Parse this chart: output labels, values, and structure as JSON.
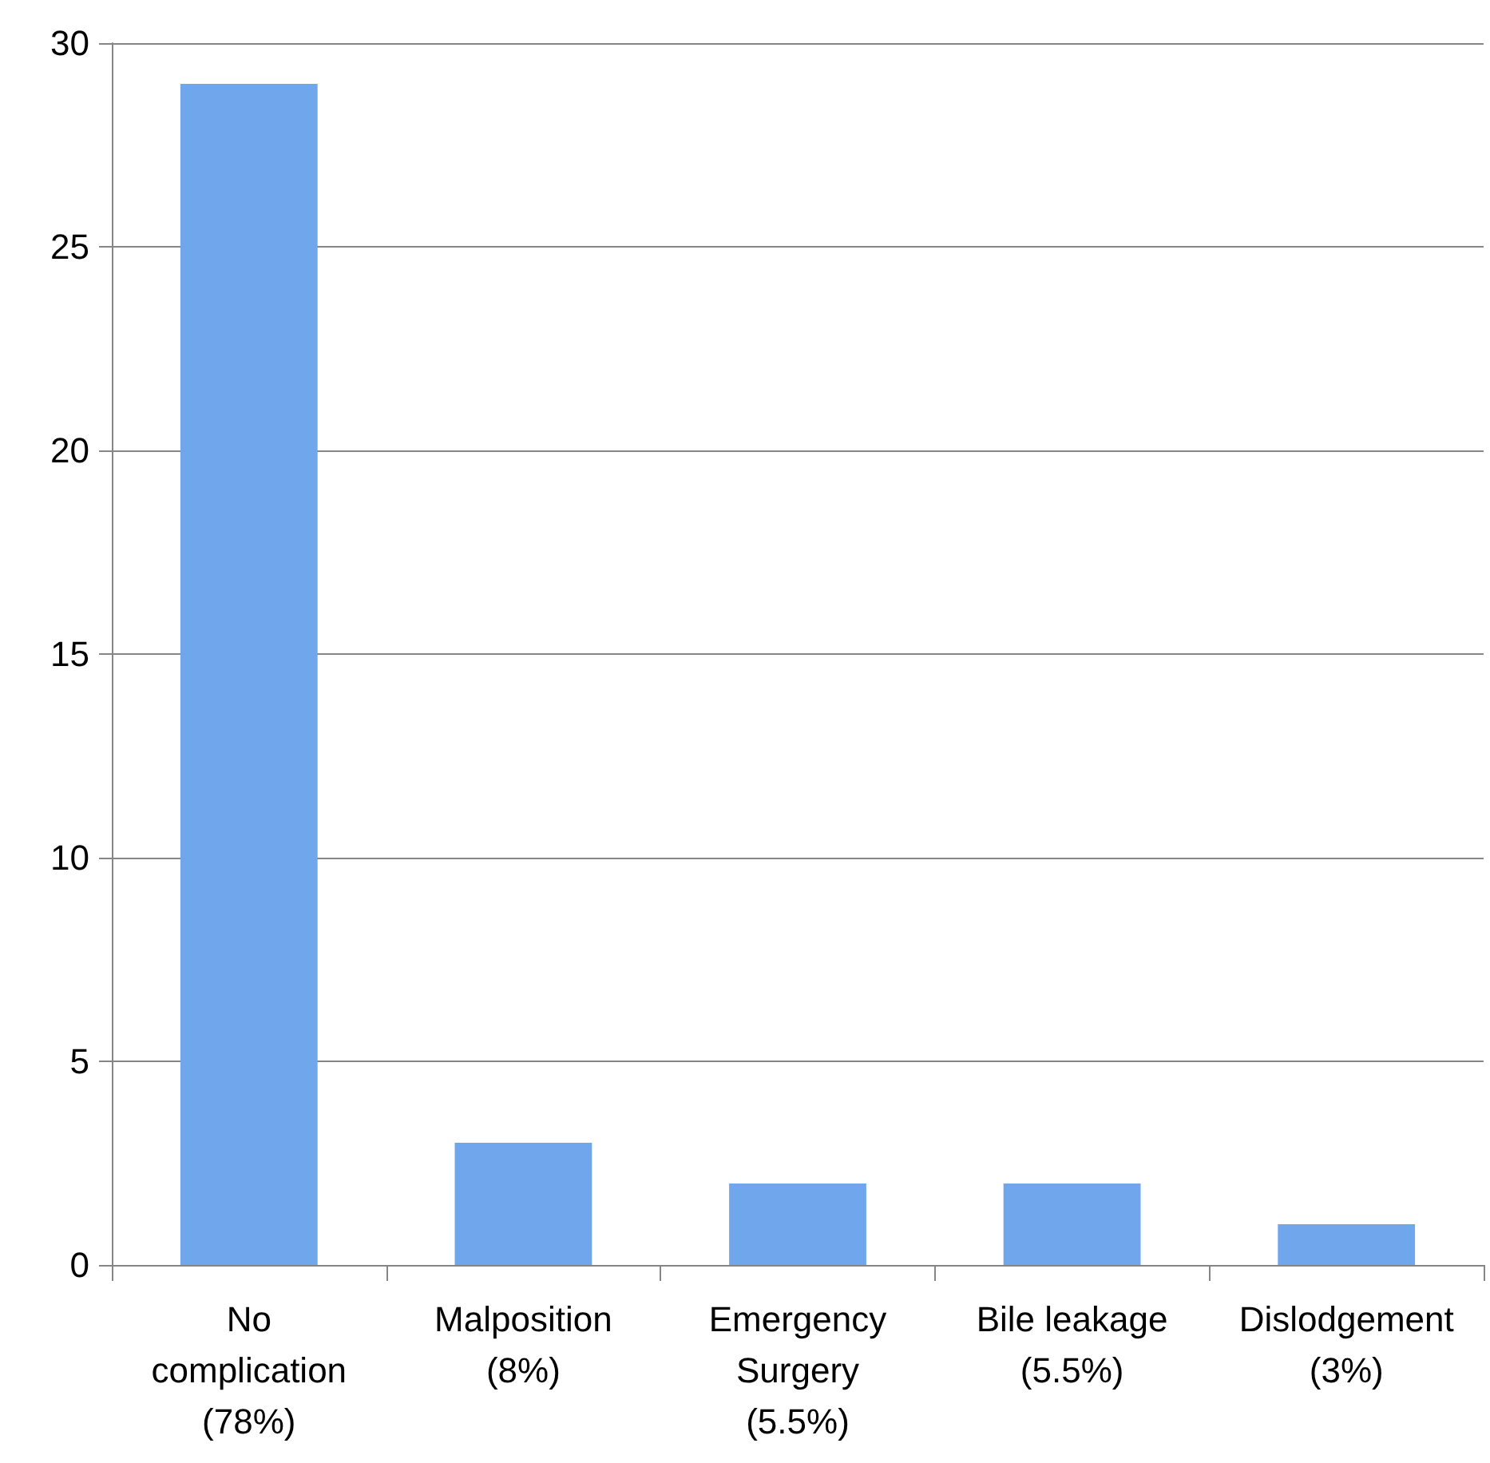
{
  "chart_data": {
    "type": "bar",
    "categories": [
      "No\ncomplication\n(78%)",
      "Malposition\n(8%)",
      "Emergency\nSurgery\n(5.5%)",
      "Bile leakage\n(5.5%)",
      "Dislodgement\n(3%)"
    ],
    "values": [
      29,
      3,
      2,
      2,
      1
    ],
    "color": "#6fa6ec",
    "ylim": [
      0,
      30
    ],
    "yticks": [
      0,
      5,
      10,
      15,
      20,
      25,
      30
    ],
    "grid": "y"
  }
}
